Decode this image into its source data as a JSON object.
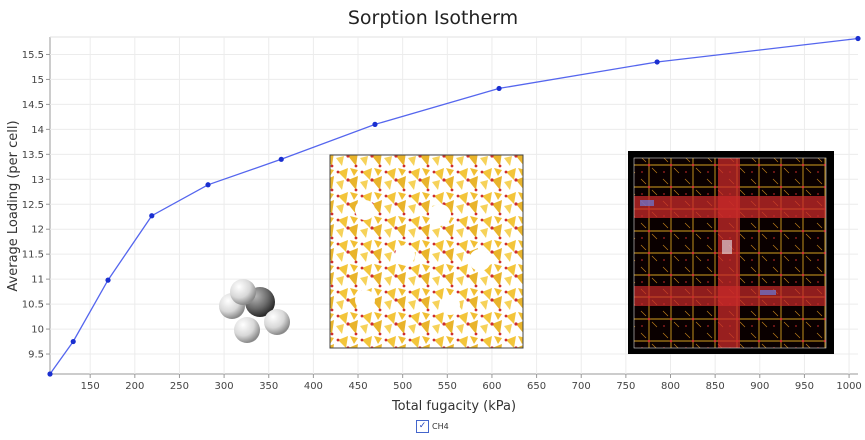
{
  "chart_data": {
    "type": "line",
    "title": "Sorption Isotherm",
    "xlabel": "Total fugacity (kPa)",
    "ylabel": "Average Loading (per cell)",
    "xlim": [
      105,
      1010
    ],
    "ylim": [
      9.1,
      15.85
    ],
    "xticks": [
      150,
      200,
      250,
      300,
      350,
      400,
      450,
      500,
      550,
      600,
      650,
      700,
      750,
      800,
      850,
      900,
      950,
      1000
    ],
    "yticks": [
      9.5,
      10,
      10.5,
      11,
      11.5,
      12,
      12.5,
      13,
      13.5,
      14,
      14.5,
      15,
      15.5
    ],
    "series": [
      {
        "name": "CH4",
        "color": "#5566ee",
        "marker_color": "#1a2fd0",
        "x": [
          105,
          131,
          170,
          219,
          282,
          364,
          469,
          608,
          785,
          1010
        ],
        "y": [
          9.1,
          9.75,
          10.98,
          12.27,
          12.89,
          13.4,
          14.1,
          14.82,
          15.35,
          15.82
        ]
      }
    ]
  },
  "legend": {
    "checked_mark": "✓",
    "label": "CH4"
  },
  "insets": [
    {
      "name": "methane-molecule-image"
    },
    {
      "name": "zeolite-framework-image"
    },
    {
      "name": "density-map-image"
    }
  ]
}
